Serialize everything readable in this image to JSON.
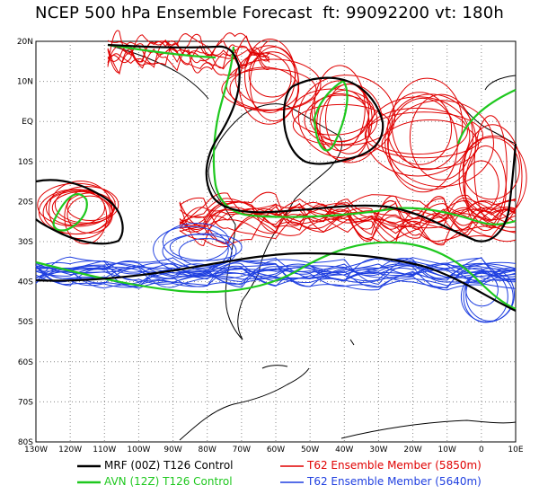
{
  "title": "NCEP 500 hPa Ensemble Forecast  ft: 99092200 vt: 180h",
  "lat_labels": [
    "20N",
    "10N",
    "EQ",
    "10S",
    "20S",
    "30S",
    "40S",
    "50S",
    "60S",
    "70S",
    "80S"
  ],
  "lon_labels": [
    "130W",
    "120W",
    "110W",
    "100W",
    "90W",
    "80W",
    "70W",
    "60W",
    "50W",
    "40W",
    "30W",
    "20W",
    "10W",
    "0",
    "10E"
  ],
  "legend": {
    "mrf": "MRF (00Z) T126 Control",
    "avn": "AVN (12Z) T126 Control",
    "red": "T62 Ensemble Member (5850m)",
    "blue": "T62 Ensemble Member (5640m)"
  },
  "colors": {
    "mrf": "#000000",
    "avn": "#1ec81e",
    "red": "#e00000",
    "blue": "#1f3fe0",
    "grid": "#888888"
  }
}
